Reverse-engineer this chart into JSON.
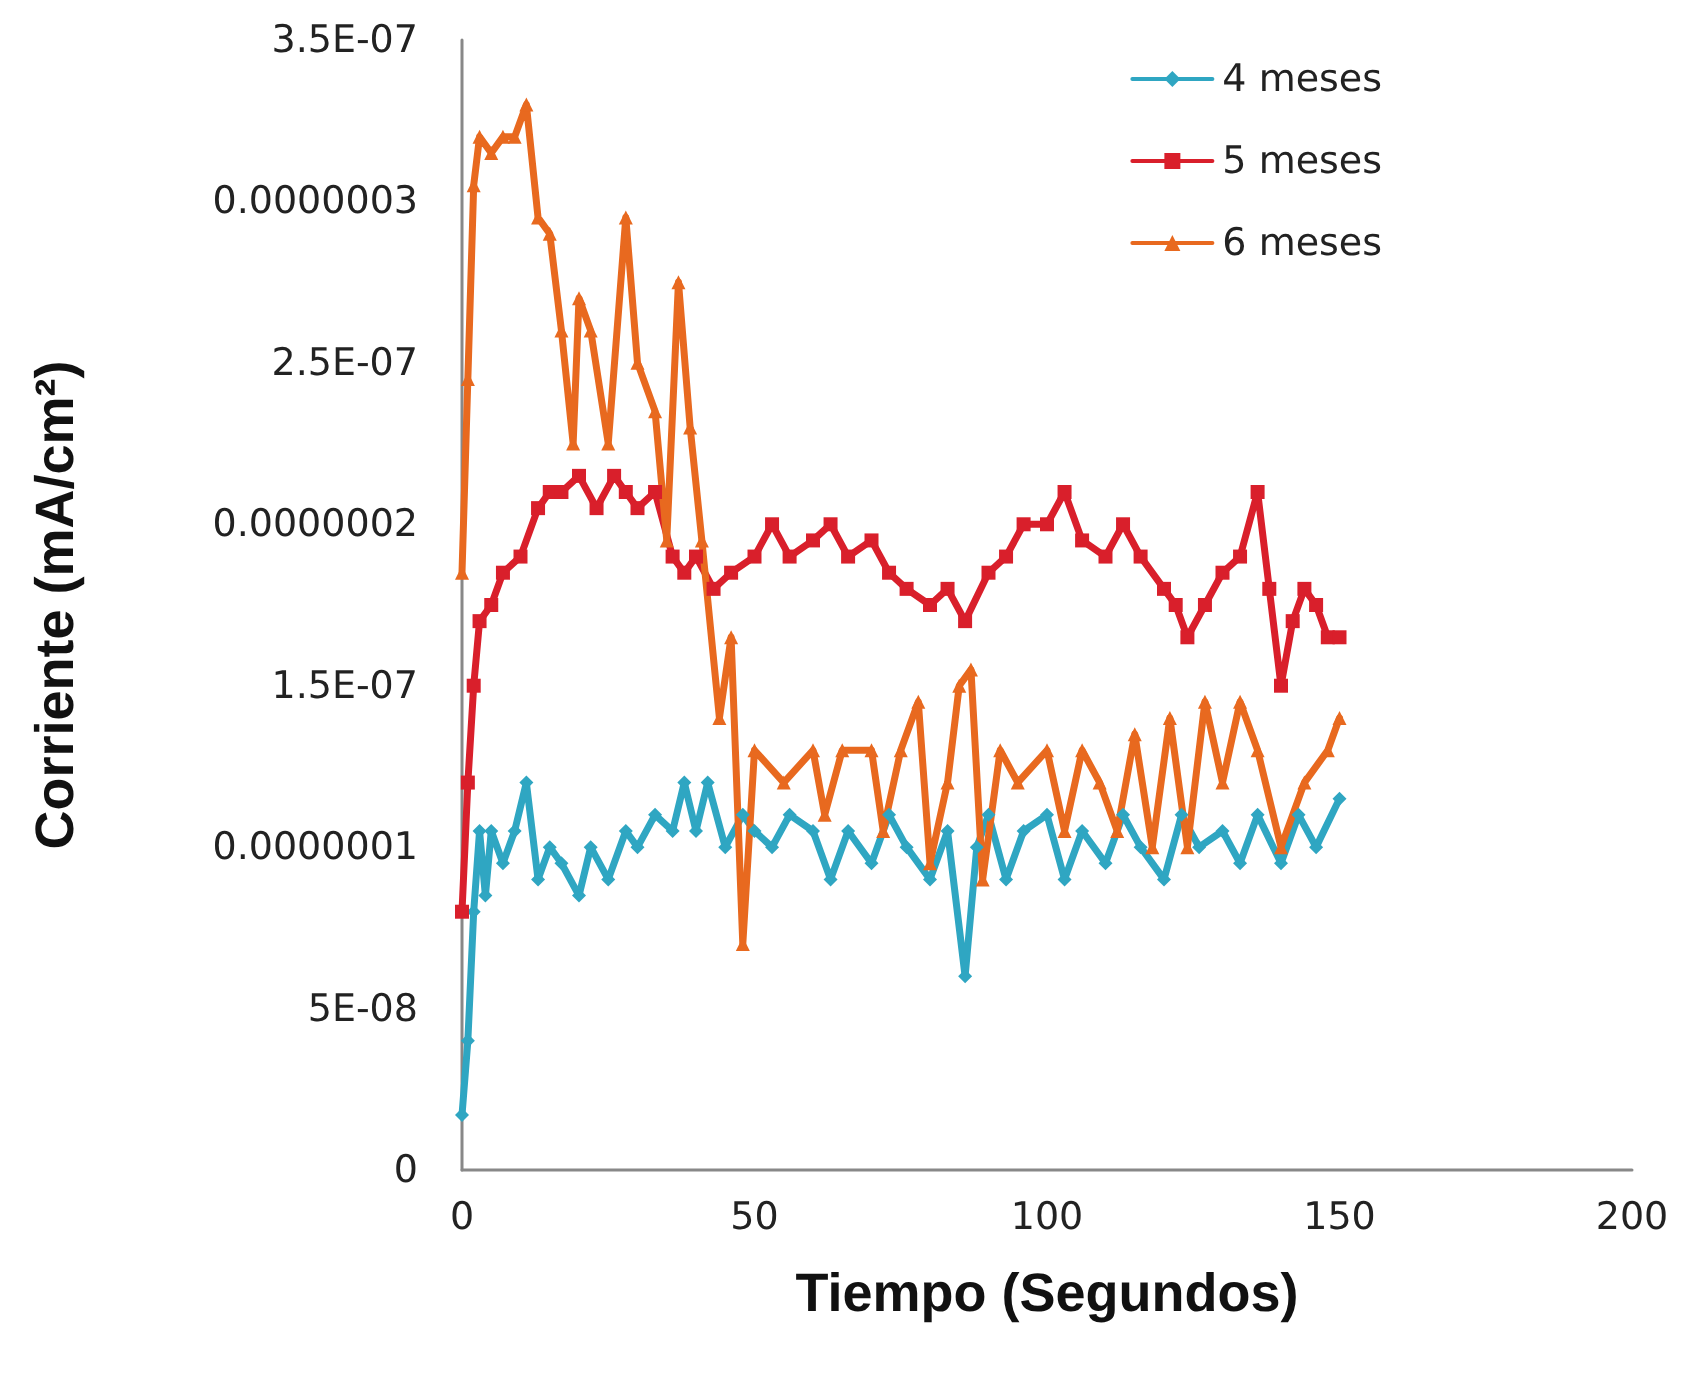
{
  "chart_data": {
    "type": "line",
    "xlabel": "Tiempo (Segundos)",
    "ylabel": "Corriente (mA/cm²)",
    "xlim": [
      0,
      200
    ],
    "xticks": [
      0,
      50,
      100,
      150,
      200
    ],
    "ylim": [
      0,
      3.5e-07
    ],
    "yticks": [
      {
        "value": 0,
        "label": "0"
      },
      {
        "value": 5e-08,
        "label": "5E-08"
      },
      {
        "value": 1e-07,
        "label": "0.0000001"
      },
      {
        "value": 1.5e-07,
        "label": "1.5E-07"
      },
      {
        "value": 2e-07,
        "label": "0.0000002"
      },
      {
        "value": 2.5e-07,
        "label": "2.5E-07"
      },
      {
        "value": 3e-07,
        "label": "0.0000003"
      },
      {
        "value": 3.5e-07,
        "label": "3.5E-07"
      }
    ],
    "grid": false,
    "legend": "top right",
    "series": [
      {
        "name": "4 meses",
        "color": "#2fa6c2",
        "marker": "diamond",
        "x": [
          0,
          1,
          2,
          3,
          4,
          5,
          7,
          9,
          11,
          13,
          15,
          17,
          20,
          22,
          25,
          28,
          30,
          33,
          36,
          38,
          40,
          42,
          45,
          48,
          50,
          53,
          56,
          60,
          63,
          66,
          70,
          73,
          76,
          80,
          83,
          86,
          88,
          90,
          93,
          96,
          100,
          103,
          106,
          110,
          113,
          116,
          120,
          123,
          126,
          130,
          133,
          136,
          140,
          143,
          146,
          150
        ],
        "values": [
          1.7e-08,
          4e-08,
          8e-08,
          1.05e-07,
          8.5e-08,
          1.05e-07,
          9.5e-08,
          1.05e-07,
          1.2e-07,
          9e-08,
          1e-07,
          9.5e-08,
          8.5e-08,
          1e-07,
          9e-08,
          1.05e-07,
          1e-07,
          1.1e-07,
          1.05e-07,
          1.2e-07,
          1.05e-07,
          1.2e-07,
          1e-07,
          1.1e-07,
          1.05e-07,
          1e-07,
          1.1e-07,
          1.05e-07,
          9e-08,
          1.05e-07,
          9.5e-08,
          1.1e-07,
          1e-07,
          9e-08,
          1.05e-07,
          6e-08,
          1e-07,
          1.1e-07,
          9e-08,
          1.05e-07,
          1.1e-07,
          9e-08,
          1.05e-07,
          9.5e-08,
          1.1e-07,
          1e-07,
          9e-08,
          1.1e-07,
          1e-07,
          1.05e-07,
          9.5e-08,
          1.1e-07,
          9.5e-08,
          1.1e-07,
          1e-07,
          1.15e-07
        ]
      },
      {
        "name": "5 meses",
        "color": "#d91f2b",
        "marker": "square",
        "x": [
          0,
          1,
          2,
          3,
          5,
          7,
          10,
          13,
          15,
          17,
          20,
          23,
          26,
          28,
          30,
          33,
          36,
          38,
          40,
          43,
          46,
          50,
          53,
          56,
          60,
          63,
          66,
          70,
          73,
          76,
          80,
          83,
          86,
          90,
          93,
          96,
          100,
          103,
          106,
          110,
          113,
          116,
          120,
          122,
          124,
          127,
          130,
          133,
          136,
          138,
          140,
          142,
          144,
          146,
          148,
          150
        ],
        "values": [
          8e-08,
          1.2e-07,
          1.5e-07,
          1.7e-07,
          1.75e-07,
          1.85e-07,
          1.9e-07,
          2.05e-07,
          2.1e-07,
          2.1e-07,
          2.15e-07,
          2.05e-07,
          2.15e-07,
          2.1e-07,
          2.05e-07,
          2.1e-07,
          1.9e-07,
          1.85e-07,
          1.9e-07,
          1.8e-07,
          1.85e-07,
          1.9e-07,
          2e-07,
          1.9e-07,
          1.95e-07,
          2e-07,
          1.9e-07,
          1.95e-07,
          1.85e-07,
          1.8e-07,
          1.75e-07,
          1.8e-07,
          1.7e-07,
          1.85e-07,
          1.9e-07,
          2e-07,
          2e-07,
          2.1e-07,
          1.95e-07,
          1.9e-07,
          2e-07,
          1.9e-07,
          1.8e-07,
          1.75e-07,
          1.65e-07,
          1.75e-07,
          1.85e-07,
          1.9e-07,
          2.1e-07,
          1.8e-07,
          1.5e-07,
          1.7e-07,
          1.8e-07,
          1.75e-07,
          1.65e-07,
          1.65e-07
        ]
      },
      {
        "name": "6 meses",
        "color": "#e8691f",
        "marker": "triangle",
        "x": [
          0,
          1,
          2,
          3,
          5,
          7,
          9,
          11,
          13,
          15,
          17,
          19,
          20,
          22,
          25,
          28,
          30,
          33,
          35,
          37,
          39,
          41,
          44,
          46,
          48,
          50,
          55,
          60,
          62,
          65,
          70,
          72,
          75,
          78,
          80,
          83,
          85,
          87,
          89,
          92,
          95,
          100,
          103,
          106,
          109,
          112,
          115,
          118,
          121,
          124,
          127,
          130,
          133,
          136,
          140,
          144,
          148,
          150
        ],
        "values": [
          1.85e-07,
          2.45e-07,
          3.05e-07,
          3.2e-07,
          3.15e-07,
          3.2e-07,
          3.2e-07,
          3.3e-07,
          2.95e-07,
          2.9e-07,
          2.6e-07,
          2.25e-07,
          2.7e-07,
          2.6e-07,
          2.25e-07,
          2.95e-07,
          2.5e-07,
          2.35e-07,
          1.95e-07,
          2.75e-07,
          2.3e-07,
          1.95e-07,
          1.4e-07,
          1.65e-07,
          7e-08,
          1.3e-07,
          1.2e-07,
          1.3e-07,
          1.1e-07,
          1.3e-07,
          1.3e-07,
          1.05e-07,
          1.3e-07,
          1.45e-07,
          9.5e-08,
          1.2e-07,
          1.5e-07,
          1.55e-07,
          9e-08,
          1.3e-07,
          1.2e-07,
          1.3e-07,
          1.05e-07,
          1.3e-07,
          1.2e-07,
          1.05e-07,
          1.35e-07,
          1e-07,
          1.4e-07,
          1e-07,
          1.45e-07,
          1.2e-07,
          1.45e-07,
          1.3e-07,
          1e-07,
          1.2e-07,
          1.3e-07,
          1.4e-07
        ]
      }
    ]
  }
}
